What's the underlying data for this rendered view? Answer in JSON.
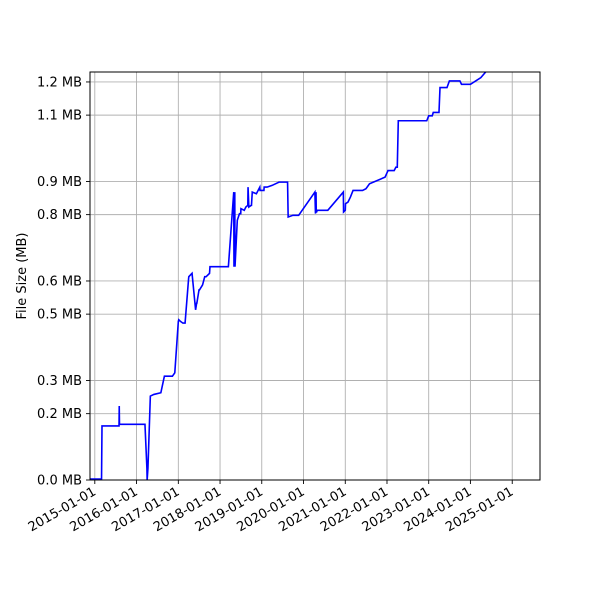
{
  "chart_data": {
    "type": "line",
    "title": "",
    "xlabel": "",
    "ylabel": "File Size (MB)",
    "grid": true,
    "line_color": "#0000ff",
    "xlim": [
      "2014-11-20",
      "2025-09-01"
    ],
    "ylim": [
      0,
      1.23
    ],
    "x_ticks": [
      "2015-01-01",
      "2016-01-01",
      "2017-01-01",
      "2018-01-01",
      "2019-01-01",
      "2020-01-01",
      "2021-01-01",
      "2022-01-01",
      "2023-01-01",
      "2024-01-01",
      "2025-01-01"
    ],
    "y_ticks": [
      {
        "value": 0.0,
        "label": "0.0 MB"
      },
      {
        "value": 0.2,
        "label": "0.2 MB"
      },
      {
        "value": 0.3,
        "label": "0.3 MB"
      },
      {
        "value": 0.5,
        "label": "0.5 MB"
      },
      {
        "value": 0.6,
        "label": "0.6 MB"
      },
      {
        "value": 0.8,
        "label": "0.8 MB"
      },
      {
        "value": 0.9,
        "label": "0.9 MB"
      },
      {
        "value": 1.1,
        "label": "1.1 MB"
      },
      {
        "value": 1.2,
        "label": "1.2 MB"
      }
    ],
    "series": [
      {
        "x": [
          "2014-11-20",
          "2015-03-01",
          "2015-03-05",
          "2015-08-01",
          "2015-08-03",
          "2015-08-05",
          "2016-03-01",
          "2016-03-15",
          "2016-04-01",
          "2016-04-03",
          "2016-04-10",
          "2016-05-01",
          "2016-06-01",
          "2016-08-01",
          "2016-09-01",
          "2016-11-10",
          "2016-12-01",
          "2017-01-01",
          "2017-01-05",
          "2017-01-20",
          "2017-02-10",
          "2017-03-01",
          "2017-04-01",
          "2017-04-03",
          "2017-05-01",
          "2017-06-01",
          "2017-06-10",
          "2017-06-12",
          "2017-07-01",
          "2017-07-05",
          "2017-08-01",
          "2017-08-20",
          "2017-09-01",
          "2017-10-01",
          "2017-10-05",
          "2018-01-01",
          "2018-03-15",
          "2018-05-01",
          "2018-05-03",
          "2018-05-05",
          "2018-05-08",
          "2018-05-10",
          "2018-05-12",
          "2018-06-01",
          "2018-06-20",
          "2018-07-01",
          "2018-07-03",
          "2018-08-01",
          "2018-08-15",
          "2018-09-01",
          "2018-09-03",
          "2018-09-10",
          "2018-10-01",
          "2018-10-03",
          "2018-10-10",
          "2018-11-15",
          "2018-12-15",
          "2018-12-17",
          "2019-01-20",
          "2019-01-22",
          "2019-02-15",
          "2019-02-17",
          "2019-04-01",
          "2019-05-01",
          "2019-06-01",
          "2019-08-15",
          "2019-08-20",
          "2019-10-01",
          "2019-11-01",
          "2019-11-20",
          "2020-04-10",
          "2020-04-15",
          "2020-04-20",
          "2020-04-22",
          "2020-04-25",
          "2020-05-01",
          "2020-08-01",
          "2020-12-15",
          "2020-12-17",
          "2021-01-01",
          "2021-01-03",
          "2021-01-25",
          "2021-02-15",
          "2021-03-10",
          "2021-03-12",
          "2021-05-01",
          "2021-06-01",
          "2021-07-01",
          "2021-08-01",
          "2021-12-15",
          "2022-01-10",
          "2022-01-25",
          "2022-02-10",
          "2022-03-01",
          "2022-03-05",
          "2022-03-20",
          "2022-04-01",
          "2022-04-10",
          "2022-12-15",
          "2023-01-01",
          "2023-02-01",
          "2023-02-10",
          "2023-04-01",
          "2023-04-10",
          "2023-06-10",
          "2023-07-01",
          "2023-10-01",
          "2023-10-15",
          "2024-01-01",
          "2024-04-01",
          "2024-06-15",
          "2024-07-01",
          "2024-10-01",
          "2024-12-10",
          "2025-03-01",
          "2025-03-15",
          "2025-04-01"
        ],
        "y": [
          0.003,
          0.003,
          0.163,
          0.163,
          0.223,
          0.168,
          0.168,
          0.168,
          0.035,
          0.0,
          0.035,
          0.253,
          0.258,
          0.263,
          0.313,
          0.313,
          0.323,
          0.478,
          0.483,
          0.478,
          0.473,
          0.473,
          0.608,
          0.613,
          0.623,
          0.513,
          0.533,
          0.533,
          0.573,
          0.573,
          0.588,
          0.613,
          0.613,
          0.623,
          0.643,
          0.643,
          0.643,
          0.868,
          0.643,
          0.868,
          0.643,
          0.868,
          0.643,
          0.783,
          0.803,
          0.803,
          0.818,
          0.813,
          0.823,
          0.828,
          0.883,
          0.823,
          0.828,
          0.828,
          0.868,
          0.863,
          0.883,
          0.873,
          0.873,
          0.883,
          0.883,
          0.883,
          0.888,
          0.893,
          0.898,
          0.898,
          0.793,
          0.798,
          0.798,
          0.798,
          0.868,
          0.803,
          0.868,
          0.808,
          0.808,
          0.813,
          0.813,
          0.868,
          0.808,
          0.813,
          0.833,
          0.838,
          0.853,
          0.873,
          0.873,
          0.873,
          0.873,
          0.878,
          0.893,
          0.913,
          0.933,
          0.933,
          0.933,
          0.933,
          0.933,
          0.943,
          0.943,
          1.083,
          1.083,
          1.098,
          1.098,
          1.108,
          1.108,
          1.183,
          1.183,
          1.203,
          1.203,
          1.193,
          1.193,
          1.213,
          1.243,
          1.243,
          1.243,
          1.243,
          1.243,
          1.243,
          1.243
        ]
      }
    ]
  }
}
